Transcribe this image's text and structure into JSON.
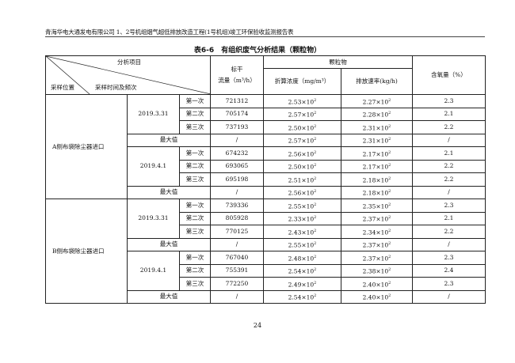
{
  "header": "青海华电大通发电有限公司 1、2号机组烟气超低排放改造工程(1号机组)竣工环保验收监测报告表",
  "title": "表6-6　有组织废气分析结果（颗粒物）",
  "columns": {
    "analysis_item": "分析项目",
    "sampling_location": "采样位置",
    "sampling_time": "采样时间及频次",
    "flow_top": "标干",
    "flow_bottom": "流量（m³/h）",
    "particulate": "颗粒物",
    "conc": "折算浓度（mg/m³）",
    "rate": "排放速率(kg/h)",
    "oxygen": "含氧量（%）"
  },
  "max_label": "最大值",
  "groups": [
    {
      "location": "A侧布袋除尘器进口",
      "dates": [
        {
          "date": "2019.3.31",
          "rows": [
            [
              "第一次",
              "721312",
              "2.53",
              "2.27",
              "2.3"
            ],
            [
              "第二次",
              "705174",
              "2.57",
              "2.28",
              "2.1"
            ],
            [
              "第三次",
              "737193",
              "2.50",
              "2.31",
              "2.2"
            ]
          ],
          "max": [
            "/",
            "2.57",
            "2.31",
            "/"
          ]
        },
        {
          "date": "2019.4.1",
          "rows": [
            [
              "第一次",
              "674232",
              "2.56",
              "2.17",
              "2.1"
            ],
            [
              "第二次",
              "693065",
              "2.50",
              "2.17",
              "2.2"
            ],
            [
              "第三次",
              "695198",
              "2.51",
              "2.18",
              "2.2"
            ]
          ],
          "max": [
            "/",
            "2.56",
            "2.18",
            "/"
          ]
        }
      ]
    },
    {
      "location": "B侧布袋除尘器进口",
      "dates": [
        {
          "date": "2019.3.31",
          "rows": [
            [
              "第一次",
              "739336",
              "2.55",
              "2.35",
              "2.3"
            ],
            [
              "第二次",
              "805928",
              "2.33",
              "2.37",
              "2.1"
            ],
            [
              "第三次",
              "770125",
              "2.43",
              "2.34",
              "2.2"
            ]
          ],
          "max": [
            "/",
            "2.55",
            "2.37",
            "/"
          ]
        },
        {
          "date": "2019.4.1",
          "rows": [
            [
              "第一次",
              "767040",
              "2.48",
              "2.37",
              "2.3"
            ],
            [
              "第二次",
              "755391",
              "2.54",
              "2.38",
              "2.4"
            ],
            [
              "第三次",
              "772250",
              "2.49",
              "2.40",
              "2.3"
            ]
          ],
          "max": [
            "/",
            "2.54",
            "2.40",
            "/"
          ]
        }
      ]
    }
  ],
  "exponent_suffix": "×10",
  "exponent": "2",
  "page_number": "24"
}
